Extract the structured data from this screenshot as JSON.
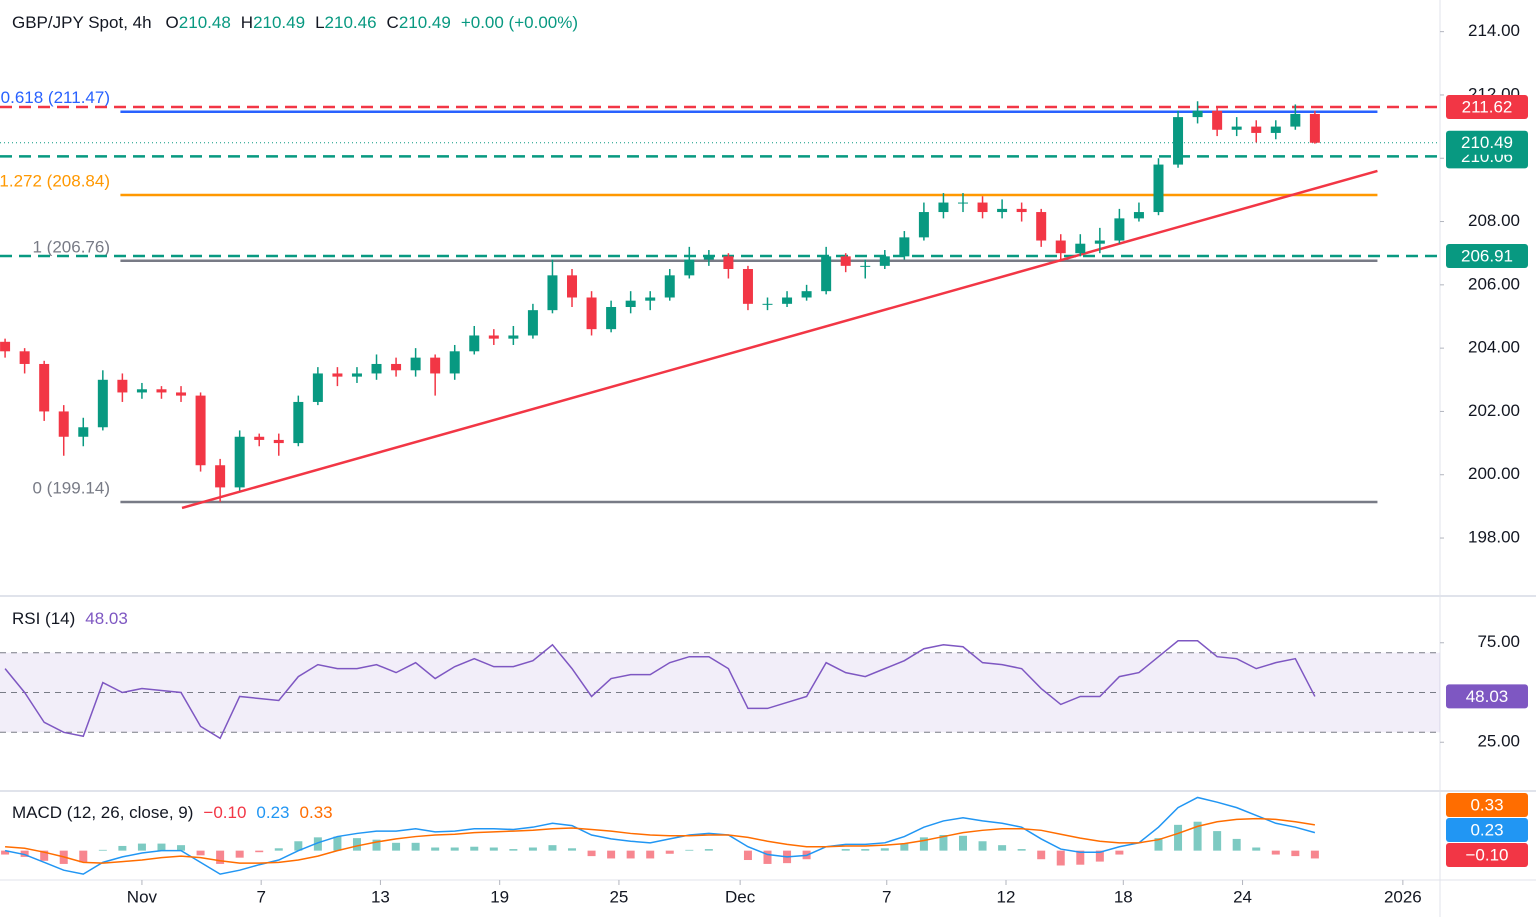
{
  "chart_data": [
    {
      "type": "candlestick",
      "title": "GBP/JPY Spot, 4h",
      "ohlc": [
        {
          "label": "O",
          "value": 210.48
        },
        {
          "label": "H",
          "value": 210.49
        },
        {
          "label": "L",
          "value": 210.46
        },
        {
          "label": "C",
          "value": 210.49
        }
      ],
      "change": "+0.00 (+0.00%)",
      "up_color": "#089981",
      "down_color": "#f23645",
      "xlim": [
        -0.26,
        73.4
      ],
      "ylim": [
        196.2,
        215.0
      ],
      "yticks": [
        {
          "value": 198,
          "label": "198.00"
        },
        {
          "value": 200,
          "label": "200.00"
        },
        {
          "value": 202,
          "label": "202.00"
        },
        {
          "value": 204,
          "label": "204.00"
        },
        {
          "value": 206,
          "label": "206.00"
        },
        {
          "value": 208,
          "label": "208.00"
        },
        {
          "value": 210,
          "label": "210.00"
        },
        {
          "value": 212,
          "label": "212.00"
        },
        {
          "value": 214,
          "label": "214.00"
        }
      ],
      "open": [
        204.2,
        203.9,
        203.5,
        202.0,
        201.2,
        201.5,
        203.0,
        202.6,
        202.7,
        202.6,
        202.5,
        200.3,
        199.6,
        201.2,
        201.1,
        201.0,
        202.3,
        203.2,
        203.1,
        203.2,
        203.5,
        203.3,
        203.7,
        203.2,
        203.9,
        204.4,
        204.3,
        204.4,
        205.2,
        206.3,
        205.6,
        204.6,
        205.3,
        205.5,
        205.6,
        206.3,
        206.8,
        206.9,
        206.5,
        205.4,
        205.4,
        205.6,
        205.8,
        206.9,
        206.6,
        206.6,
        206.9,
        207.5,
        208.3,
        208.6,
        208.6,
        208.3,
        208.4,
        208.3,
        207.4,
        207.0,
        207.3,
        207.4,
        208.1,
        208.3,
        209.8,
        211.3,
        211.5,
        210.9,
        211.0,
        210.8,
        211.0,
        211.4
      ],
      "high": [
        204.3,
        204.0,
        203.6,
        202.2,
        201.8,
        203.3,
        203.2,
        202.9,
        202.8,
        202.8,
        202.6,
        200.5,
        201.4,
        201.3,
        201.3,
        202.5,
        203.4,
        203.4,
        203.4,
        203.8,
        203.7,
        204.0,
        203.8,
        204.1,
        204.7,
        204.6,
        204.7,
        205.4,
        206.8,
        206.5,
        205.8,
        205.5,
        205.8,
        205.8,
        206.5,
        207.2,
        207.1,
        207.0,
        206.6,
        205.6,
        205.8,
        206.0,
        207.2,
        207.0,
        206.8,
        207.1,
        207.7,
        208.6,
        208.9,
        208.9,
        208.8,
        208.7,
        208.6,
        208.4,
        207.6,
        207.6,
        207.8,
        208.4,
        208.6,
        210.0,
        211.5,
        211.8,
        211.6,
        211.3,
        211.2,
        211.2,
        211.7,
        211.5
      ],
      "low": [
        203.7,
        203.2,
        201.7,
        200.6,
        200.9,
        201.4,
        202.3,
        202.4,
        202.4,
        202.3,
        200.1,
        199.14,
        199.5,
        200.9,
        200.6,
        200.9,
        202.2,
        202.8,
        202.9,
        203.0,
        203.1,
        203.1,
        202.5,
        203.0,
        203.8,
        204.1,
        204.1,
        204.3,
        205.1,
        205.3,
        204.4,
        204.5,
        205.1,
        205.2,
        205.5,
        206.2,
        206.6,
        206.2,
        205.2,
        205.2,
        205.3,
        205.5,
        205.7,
        206.4,
        206.2,
        206.5,
        206.8,
        207.4,
        208.1,
        208.3,
        208.1,
        208.1,
        208.0,
        207.2,
        206.8,
        206.9,
        207.0,
        207.3,
        208.0,
        208.2,
        209.7,
        211.1,
        210.7,
        210.7,
        210.5,
        210.6,
        210.9,
        210.46
      ],
      "close": [
        203.9,
        203.5,
        202.0,
        201.2,
        201.5,
        203.0,
        202.6,
        202.7,
        202.6,
        202.5,
        200.3,
        199.6,
        201.2,
        201.1,
        201.0,
        202.3,
        203.2,
        203.1,
        203.2,
        203.5,
        203.3,
        203.7,
        203.2,
        203.9,
        204.4,
        204.3,
        204.4,
        205.2,
        206.3,
        205.6,
        204.6,
        205.3,
        205.5,
        205.6,
        206.3,
        206.8,
        206.9,
        206.5,
        205.4,
        205.4,
        205.6,
        205.8,
        206.9,
        206.6,
        206.6,
        206.9,
        207.5,
        208.3,
        208.6,
        208.6,
        208.3,
        208.4,
        208.3,
        207.4,
        207.0,
        207.3,
        207.4,
        208.1,
        208.3,
        209.8,
        211.3,
        211.5,
        210.9,
        211.0,
        210.8,
        211.0,
        211.4,
        210.49
      ],
      "levels": [
        {
          "label": "0.618 (211.47)",
          "value": 211.47,
          "color": "#2962ff",
          "from": 5.9,
          "to": 70.2
        },
        {
          "label": "1.272 (208.84)",
          "value": 208.84,
          "color": "#ff9800",
          "from": 5.9,
          "to": 70.2
        },
        {
          "label": "1 (206.76)",
          "value": 206.76,
          "color": "#787b86",
          "from": 5.9,
          "to": 70.2
        },
        {
          "label": "0 (199.14)",
          "value": 199.14,
          "color": "#787b86",
          "from": 5.9,
          "to": 70.2
        }
      ],
      "hlines": [
        {
          "value": 211.62,
          "color": "#f23645"
        },
        {
          "value": 210.06,
          "color": "#089981"
        },
        {
          "value": 206.91,
          "color": "#089981"
        }
      ],
      "trendline": {
        "x": [
          9.05,
          70.2
        ],
        "y": [
          198.95,
          209.6
        ],
        "color": "#f23645"
      }
    },
    {
      "type": "rsi",
      "title": "RSI (14)",
      "color": "#7e57c2",
      "xlim": [
        -0.26,
        73.4
      ],
      "ylim": [
        1,
        98
      ],
      "yticks": [
        {
          "value": 25,
          "label": "25.00"
        },
        {
          "value": 75,
          "label": "75.00"
        }
      ],
      "bands": [
        70,
        50,
        30
      ],
      "values": [
        62,
        50,
        35,
        30,
        28,
        55,
        50,
        52,
        51,
        50,
        33,
        27,
        48,
        47,
        46,
        58,
        64,
        62,
        62,
        64,
        60,
        65,
        57,
        63,
        67,
        63,
        63,
        66,
        74,
        62,
        48,
        57,
        59,
        59,
        65,
        68,
        68,
        62,
        42,
        42,
        45,
        48,
        65,
        60,
        58,
        62,
        66,
        72,
        74,
        73,
        65,
        64,
        62,
        52,
        44,
        48,
        48,
        58,
        60,
        68,
        76,
        76,
        68,
        67,
        62,
        65,
        67,
        48.03
      ]
    },
    {
      "type": "macd",
      "title": "MACD (12, 26, close, 9)",
      "xlim": [
        -0.26,
        73.4
      ],
      "ylim": [
        -0.35,
        0.75
      ],
      "xticks": [
        {
          "value": 7,
          "label": "Nov"
        },
        {
          "value": 13.1,
          "label": "7"
        },
        {
          "value": 19.2,
          "label": "13"
        },
        {
          "value": 25.3,
          "label": "19"
        },
        {
          "value": 31.4,
          "label": "25"
        },
        {
          "value": 37.6,
          "label": "Dec"
        },
        {
          "value": 45.1,
          "label": "7"
        },
        {
          "value": 51.2,
          "label": "12"
        },
        {
          "value": 57.2,
          "label": "18"
        },
        {
          "value": 63.3,
          "label": "24"
        },
        {
          "value": 71.5,
          "label": "2026"
        }
      ],
      "histogram": {
        "up_color": "#26a69a",
        "down_color": "#f23645",
        "last_label": "−0.10",
        "values": [
          -0.05,
          -0.08,
          -0.13,
          -0.17,
          -0.15,
          0.01,
          0.06,
          0.09,
          0.09,
          0.07,
          -0.06,
          -0.17,
          -0.09,
          -0.02,
          0.03,
          0.12,
          0.17,
          0.18,
          0.16,
          0.14,
          0.1,
          0.1,
          0.04,
          0.04,
          0.05,
          0.04,
          0.02,
          0.04,
          0.07,
          0.03,
          -0.07,
          -0.1,
          -0.1,
          -0.1,
          -0.04,
          0.01,
          0.02,
          0.0,
          -0.12,
          -0.17,
          -0.16,
          -0.11,
          0.0,
          0.02,
          0.02,
          0.03,
          0.09,
          0.17,
          0.2,
          0.19,
          0.12,
          0.07,
          0.02,
          -0.11,
          -0.19,
          -0.18,
          -0.14,
          -0.05,
          0.0,
          0.16,
          0.33,
          0.37,
          0.25,
          0.15,
          0.04,
          -0.05,
          -0.07,
          -0.1
        ]
      },
      "series": [
        {
          "color": "#2196f3",
          "values": [
            0.0,
            -0.05,
            -0.15,
            -0.25,
            -0.3,
            -0.15,
            -0.08,
            -0.03,
            0.0,
            0.0,
            -0.15,
            -0.3,
            -0.25,
            -0.18,
            -0.12,
            0.0,
            0.1,
            0.18,
            0.22,
            0.25,
            0.25,
            0.28,
            0.24,
            0.25,
            0.28,
            0.28,
            0.27,
            0.3,
            0.35,
            0.32,
            0.2,
            0.15,
            0.12,
            0.1,
            0.15,
            0.2,
            0.22,
            0.2,
            0.05,
            -0.05,
            -0.08,
            -0.06,
            0.05,
            0.08,
            0.08,
            0.1,
            0.18,
            0.3,
            0.38,
            0.42,
            0.38,
            0.35,
            0.3,
            0.15,
            0.02,
            -0.02,
            -0.02,
            0.05,
            0.1,
            0.3,
            0.55,
            0.68,
            0.62,
            0.55,
            0.45,
            0.35,
            0.3,
            0.23
          ]
        },
        {
          "color": "#ff6d00",
          "values": [
            0.05,
            0.03,
            -0.02,
            -0.08,
            -0.15,
            -0.16,
            -0.14,
            -0.12,
            -0.09,
            -0.07,
            -0.09,
            -0.13,
            -0.16,
            -0.16,
            -0.15,
            -0.12,
            -0.07,
            0.0,
            0.06,
            0.11,
            0.15,
            0.18,
            0.2,
            0.21,
            0.23,
            0.24,
            0.25,
            0.26,
            0.28,
            0.29,
            0.27,
            0.25,
            0.22,
            0.2,
            0.19,
            0.19,
            0.2,
            0.2,
            0.17,
            0.12,
            0.08,
            0.05,
            0.05,
            0.06,
            0.06,
            0.07,
            0.09,
            0.13,
            0.18,
            0.23,
            0.26,
            0.28,
            0.28,
            0.26,
            0.21,
            0.16,
            0.12,
            0.1,
            0.1,
            0.14,
            0.22,
            0.31,
            0.37,
            0.4,
            0.41,
            0.4,
            0.37,
            0.33
          ]
        }
      ]
    }
  ]
}
